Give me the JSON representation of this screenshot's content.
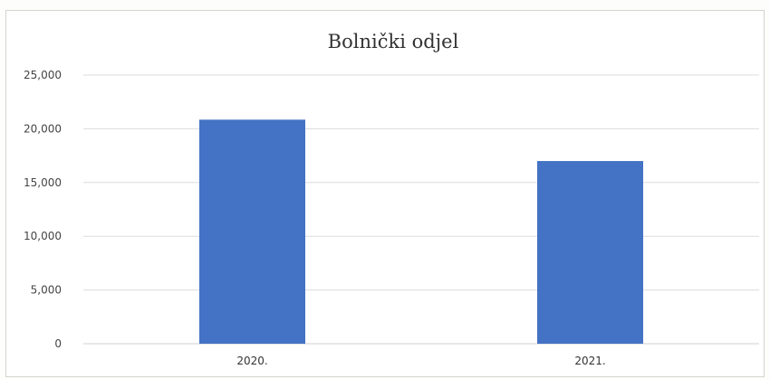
{
  "chart_data": {
    "type": "bar",
    "title": "Bolnički odjel",
    "categories": [
      "2020.",
      "2021."
    ],
    "values": [
      20850,
      17000
    ],
    "ylim": [
      0,
      25000
    ],
    "yticks": [
      0,
      5000,
      10000,
      15000,
      20000,
      25000
    ],
    "ytick_labels": [
      "0",
      "5,000",
      "10,000",
      "15,000",
      "20,000",
      "25,000"
    ],
    "xlabel": "",
    "ylabel": "",
    "grid": true,
    "legend": "none",
    "bar_color": "#4472c4"
  }
}
